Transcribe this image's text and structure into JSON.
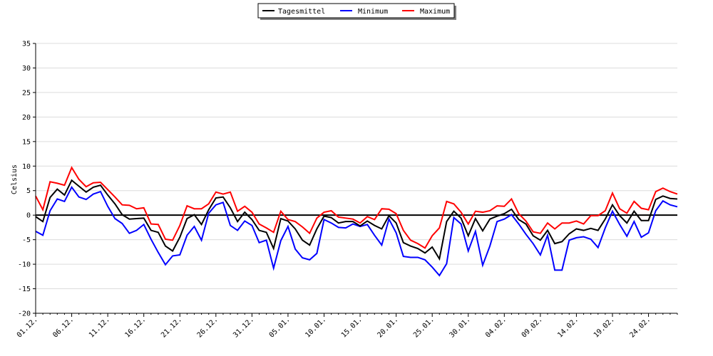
{
  "chart_data": {
    "type": "line",
    "ylabel": "Celsius",
    "xlabel": "",
    "ylim": [
      -20,
      35
    ],
    "yticks": [
      -20,
      -15,
      -10,
      -5,
      0,
      5,
      10,
      15,
      20,
      25,
      30,
      35
    ],
    "grid": "horizontal",
    "legend_position": "top-center",
    "x_tick_labels": [
      "01.12.",
      "06.12.",
      "11.12.",
      "16.12.",
      "21.12.",
      "26.12.",
      "31.12.",
      "05.01.",
      "10.01.",
      "15.01.",
      "20.01.",
      "25.01.",
      "30.01.",
      "04.02.",
      "09.02.",
      "14.02.",
      "19.02.",
      "24.02."
    ],
    "series": [
      {
        "name": "Tagesmittel",
        "color": "#000000",
        "values": [
          -0.3,
          -1.3,
          3.6,
          5.3,
          4.1,
          7.1,
          5.9,
          4.7,
          5.7,
          6.1,
          4.1,
          2.3,
          0.1,
          -0.8,
          -0.7,
          -0.6,
          -3.1,
          -3.5,
          -6.3,
          -7.3,
          -4.5,
          -0.7,
          0.1,
          -1.9,
          1.1,
          3.5,
          3.7,
          1.5,
          -1.3,
          0.6,
          -0.9,
          -3.1,
          -3.5,
          -6.8,
          -0.7,
          -1.2,
          -2.8,
          -5.1,
          -6.1,
          -2.8,
          -0.2,
          -0.5,
          -1.6,
          -1.3,
          -1.3,
          -2.2,
          -1.2,
          -2.1,
          -2.8,
          -0.1,
          -1.6,
          -5.6,
          -6.3,
          -6.8,
          -7.7,
          -6.5,
          -8.9,
          -1.3,
          0.8,
          -0.6,
          -4.2,
          -0.7,
          -3.2,
          -0.8,
          -0.2,
          0.3,
          1.2,
          -0.9,
          -1.8,
          -4.2,
          -5.1,
          -3.1,
          -5.8,
          -5.4,
          -3.8,
          -2.8,
          -3.1,
          -2.7,
          -3.1,
          -0.8,
          2.1,
          -0.1,
          -1.6,
          0.8,
          -1.1,
          -1.1,
          3.2,
          3.9,
          3.4,
          3.3
        ]
      },
      {
        "name": "Minimum",
        "color": "#0000ff",
        "values": [
          -3.3,
          -4.1,
          0.9,
          3.3,
          2.8,
          5.7,
          3.7,
          3.2,
          4.3,
          4.8,
          1.8,
          -0.7,
          -1.7,
          -3.7,
          -3.1,
          -1.9,
          -4.9,
          -7.6,
          -10.1,
          -8.3,
          -8.1,
          -4.1,
          -2.3,
          -5.1,
          0.4,
          2.1,
          2.6,
          -2.1,
          -3.1,
          -1.2,
          -2.1,
          -5.6,
          -5.1,
          -10.8,
          -5.2,
          -2.3,
          -6.9,
          -8.7,
          -9.1,
          -7.8,
          -0.9,
          -1.6,
          -2.5,
          -2.6,
          -1.8,
          -2.3,
          -1.9,
          -4.1,
          -6.1,
          -0.8,
          -3.6,
          -8.4,
          -8.6,
          -8.6,
          -9.1,
          -10.6,
          -12.3,
          -9.9,
          -0.5,
          -1.8,
          -7.3,
          -3.3,
          -10.2,
          -6.3,
          -1.3,
          -0.8,
          0.1,
          -1.8,
          -3.9,
          -5.8,
          -8.1,
          -4.1,
          -11.2,
          -11.2,
          -5.1,
          -4.6,
          -4.4,
          -4.9,
          -6.6,
          -2.6,
          0.8,
          -1.9,
          -4.3,
          -1.3,
          -4.5,
          -3.6,
          0.9,
          2.9,
          2.1,
          1.7
        ]
      },
      {
        "name": "Maximum",
        "color": "#ff0000",
        "values": [
          3.9,
          1.1,
          6.8,
          6.5,
          6.1,
          9.7,
          7.3,
          5.8,
          6.6,
          6.7,
          5.2,
          3.7,
          2.1,
          2.0,
          1.3,
          1.5,
          -1.8,
          -1.9,
          -4.9,
          -5.1,
          -2.1,
          1.9,
          1.3,
          1.3,
          2.3,
          4.7,
          4.3,
          4.7,
          0.8,
          1.8,
          0.6,
          -1.8,
          -2.6,
          -3.5,
          0.8,
          -0.9,
          -1.3,
          -2.4,
          -3.7,
          -0.6,
          0.6,
          0.9,
          -0.4,
          -0.6,
          -0.8,
          -1.6,
          -0.3,
          -0.9,
          1.3,
          1.2,
          0.3,
          -3.1,
          -5.1,
          -5.8,
          -6.7,
          -4.2,
          -2.6,
          2.8,
          2.3,
          0.6,
          -1.8,
          0.8,
          0.6,
          0.9,
          1.9,
          1.8,
          3.3,
          0.3,
          -1.2,
          -3.4,
          -3.7,
          -1.6,
          -2.8,
          -1.6,
          -1.6,
          -1.2,
          -1.8,
          -0.1,
          -0.1,
          0.9,
          4.5,
          1.3,
          0.4,
          2.8,
          1.4,
          1.1,
          4.8,
          5.5,
          4.8,
          4.3
        ]
      }
    ]
  }
}
